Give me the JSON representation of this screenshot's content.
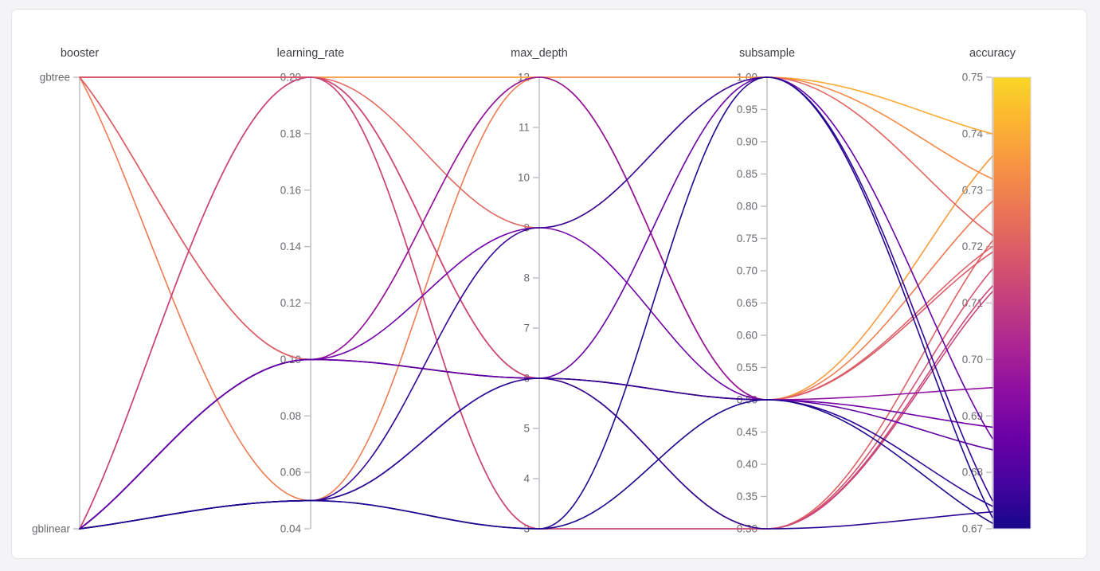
{
  "page": {
    "background_color": "#f4f4f6",
    "card_background": "#ffffff",
    "card_border": "#e4e4e7"
  },
  "chart_data": {
    "type": "parallel-coordinates",
    "description": "Hyperparameter optimization parallel coordinate plot, lines colored by accuracy (plasma colormap)",
    "color_by": "accuracy",
    "color_range": [
      0.67,
      0.75
    ],
    "axes": [
      {
        "name": "booster",
        "type": "categorical",
        "categories": [
          "gbtree",
          "gblinear"
        ],
        "ticks": [
          "gbtree",
          "gblinear"
        ]
      },
      {
        "name": "learning_rate",
        "type": "linear",
        "range": [
          0.04,
          0.2
        ],
        "ticks": [
          0.2,
          0.18,
          0.16,
          0.14,
          0.12,
          0.1,
          0.08,
          0.06,
          0.04
        ],
        "tick_labels": [
          "0.20",
          "0.18",
          "0.16",
          "0.14",
          "0.12",
          "0.10",
          "0.08",
          "0.06",
          "0.04"
        ]
      },
      {
        "name": "max_depth",
        "type": "linear",
        "range": [
          3,
          12
        ],
        "ticks": [
          12,
          11,
          10,
          9,
          8,
          7,
          6,
          5,
          4,
          3
        ],
        "tick_labels": [
          "12",
          "11",
          "10",
          "9",
          "8",
          "7",
          "6",
          "5",
          "4",
          "3"
        ]
      },
      {
        "name": "subsample",
        "type": "linear",
        "range": [
          0.3,
          1.0
        ],
        "ticks": [
          1.0,
          0.95,
          0.9,
          0.85,
          0.8,
          0.75,
          0.7,
          0.65,
          0.6,
          0.55,
          0.5,
          0.45,
          0.4,
          0.35,
          0.3
        ],
        "tick_labels": [
          "1.00",
          "0.95",
          "0.90",
          "0.85",
          "0.80",
          "0.75",
          "0.70",
          "0.65",
          "0.60",
          "0.55",
          "0.50",
          "0.45",
          "0.40",
          "0.35",
          "0.30"
        ]
      },
      {
        "name": "accuracy",
        "type": "linear",
        "range": [
          0.67,
          0.75
        ],
        "ticks": [
          0.75,
          0.74,
          0.73,
          0.72,
          0.71,
          0.7,
          0.69,
          0.68,
          0.67
        ],
        "tick_labels": [
          "0.75",
          "0.74",
          "0.73",
          "0.72",
          "0.71",
          "0.70",
          "0.69",
          "0.68",
          "0.67"
        ],
        "has_colorbar": true
      }
    ],
    "trials": [
      {
        "booster": "gbtree",
        "learning_rate": 0.2,
        "max_depth": 12,
        "subsample": 1.0,
        "accuracy": 0.74
      },
      {
        "booster": "gbtree",
        "learning_rate": 0.2,
        "max_depth": 12,
        "subsample": 0.5,
        "accuracy": 0.736
      },
      {
        "booster": "gbtree",
        "learning_rate": 0.1,
        "max_depth": 12,
        "subsample": 1.0,
        "accuracy": 0.732
      },
      {
        "booster": "gbtree",
        "learning_rate": 0.05,
        "max_depth": 12,
        "subsample": 0.5,
        "accuracy": 0.728
      },
      {
        "booster": "gbtree",
        "learning_rate": 0.2,
        "max_depth": 9,
        "subsample": 1.0,
        "accuracy": 0.722
      },
      {
        "booster": "gbtree",
        "learning_rate": 0.2,
        "max_depth": 6,
        "subsample": 0.3,
        "accuracy": 0.721
      },
      {
        "booster": "gbtree",
        "learning_rate": 0.2,
        "max_depth": 6,
        "subsample": 0.5,
        "accuracy": 0.72
      },
      {
        "booster": "gbtree",
        "learning_rate": 0.1,
        "max_depth": 6,
        "subsample": 0.5,
        "accuracy": 0.719
      },
      {
        "booster": "gbtree",
        "learning_rate": 0.2,
        "max_depth": 3,
        "subsample": 0.3,
        "accuracy": 0.716
      },
      {
        "booster": "gblinear",
        "learning_rate": 0.2,
        "max_depth": 6,
        "subsample": 0.3,
        "accuracy": 0.713
      },
      {
        "booster": "gblinear",
        "learning_rate": 0.2,
        "max_depth": 3,
        "subsample": 0.3,
        "accuracy": 0.712
      },
      {
        "booster": "gblinear",
        "learning_rate": 0.1,
        "max_depth": 12,
        "subsample": 0.5,
        "accuracy": 0.695
      },
      {
        "booster": "gblinear",
        "learning_rate": 0.1,
        "max_depth": 9,
        "subsample": 0.5,
        "accuracy": 0.688
      },
      {
        "booster": "gblinear",
        "learning_rate": 0.1,
        "max_depth": 6,
        "subsample": 1.0,
        "accuracy": 0.686
      },
      {
        "booster": "gblinear",
        "learning_rate": 0.1,
        "max_depth": 6,
        "subsample": 0.5,
        "accuracy": 0.684
      },
      {
        "booster": "gblinear",
        "learning_rate": 0.05,
        "max_depth": 9,
        "subsample": 1.0,
        "accuracy": 0.675
      },
      {
        "booster": "gblinear",
        "learning_rate": 0.05,
        "max_depth": 6,
        "subsample": 0.5,
        "accuracy": 0.674
      },
      {
        "booster": "gblinear",
        "learning_rate": 0.05,
        "max_depth": 6,
        "subsample": 0.3,
        "accuracy": 0.673
      },
      {
        "booster": "gblinear",
        "learning_rate": 0.05,
        "max_depth": 3,
        "subsample": 1.0,
        "accuracy": 0.672
      },
      {
        "booster": "gblinear",
        "learning_rate": 0.05,
        "max_depth": 3,
        "subsample": 0.5,
        "accuracy": 0.671
      }
    ],
    "colorscale": {
      "name": "plasma",
      "stops": [
        [
          0.0,
          "#0d0887"
        ],
        [
          0.1111,
          "#46039f"
        ],
        [
          0.2222,
          "#7201a8"
        ],
        [
          0.3333,
          "#9c179e"
        ],
        [
          0.4444,
          "#bd3786"
        ],
        [
          0.5556,
          "#d8576b"
        ],
        [
          0.6667,
          "#ed7953"
        ],
        [
          0.7778,
          "#fb9f3a"
        ],
        [
          0.8889,
          "#fdca26"
        ],
        [
          1.0,
          "#f0f921"
        ]
      ],
      "window": [
        0.02,
        0.92
      ]
    },
    "style": {
      "axis_line_color": "#cfcfd4",
      "tick_mark_color": "#b6b6bc",
      "tick_label_color": "#69696f",
      "title_color": "#3f3f46",
      "colorbar_border_color": "#d4d4d8",
      "line_width": 1.6
    },
    "legend_position": "right-colorbar",
    "grid": false
  }
}
